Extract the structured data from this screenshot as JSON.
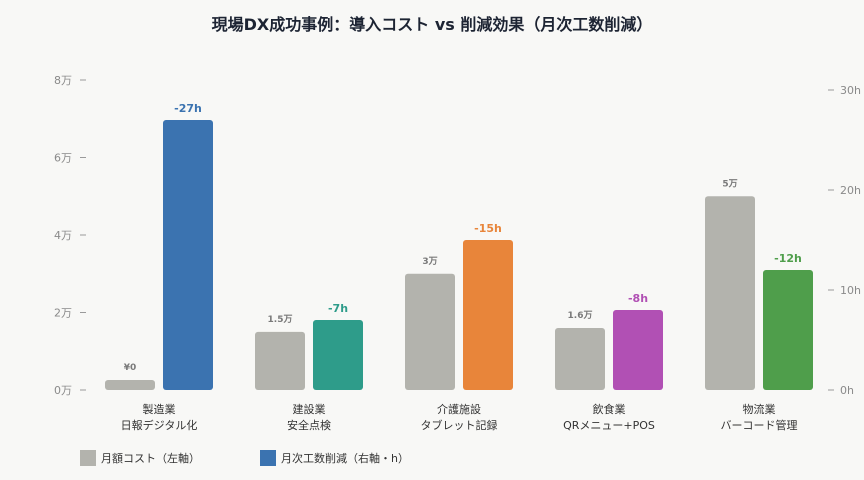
{
  "chart_data": {
    "type": "bar",
    "title": "現場DX成功事例：導入コスト vs 削減効果（月次工数削減）",
    "categories": [
      {
        "line1": "製造業",
        "line2": "日報デジタル化"
      },
      {
        "line1": "建設業",
        "line2": "安全点検"
      },
      {
        "line1": "介護施設",
        "line2": "タブレット記録"
      },
      {
        "line1": "飲食業",
        "line2": "QRメニュー+POS"
      },
      {
        "line1": "物流業",
        "line2": "バーコード管理"
      }
    ],
    "left_axis": {
      "ylim": [
        0,
        8
      ],
      "ticks": [
        {
          "value": 0,
          "label": "0万"
        },
        {
          "value": 2,
          "label": "2万"
        },
        {
          "value": 4,
          "label": "4万"
        },
        {
          "value": 6,
          "label": "6万"
        },
        {
          "value": 8,
          "label": "8万"
        }
      ]
    },
    "right_axis": {
      "ylim": [
        0,
        31
      ],
      "ticks": [
        {
          "value": 0,
          "label": "0h"
        },
        {
          "value": 10,
          "label": "10h"
        },
        {
          "value": 20,
          "label": "20h"
        },
        {
          "value": 30,
          "label": "30h"
        }
      ]
    },
    "series": [
      {
        "name": "月額コスト（左軸）",
        "axis": "left",
        "color": "#b3b3ad",
        "values": [
          0,
          1.5,
          3,
          1.6,
          5
        ],
        "labels": [
          "¥0",
          "1.5万",
          "3万",
          "1.6万",
          "5万"
        ]
      },
      {
        "name": "月次工数削減（右軸・h）",
        "axis": "right",
        "color": "#3b73b0",
        "values": [
          27,
          7,
          15,
          8,
          12
        ],
        "labels": [
          "-27h",
          "-7h",
          "-15h",
          "-8h",
          "-12h"
        ],
        "bar_colors": [
          "#3b73b0",
          "#2e9c8a",
          "#e8853a",
          "#b150b4",
          "#4f9e4b"
        ]
      }
    ],
    "legend_position": "bottom-left",
    "grid": false
  }
}
